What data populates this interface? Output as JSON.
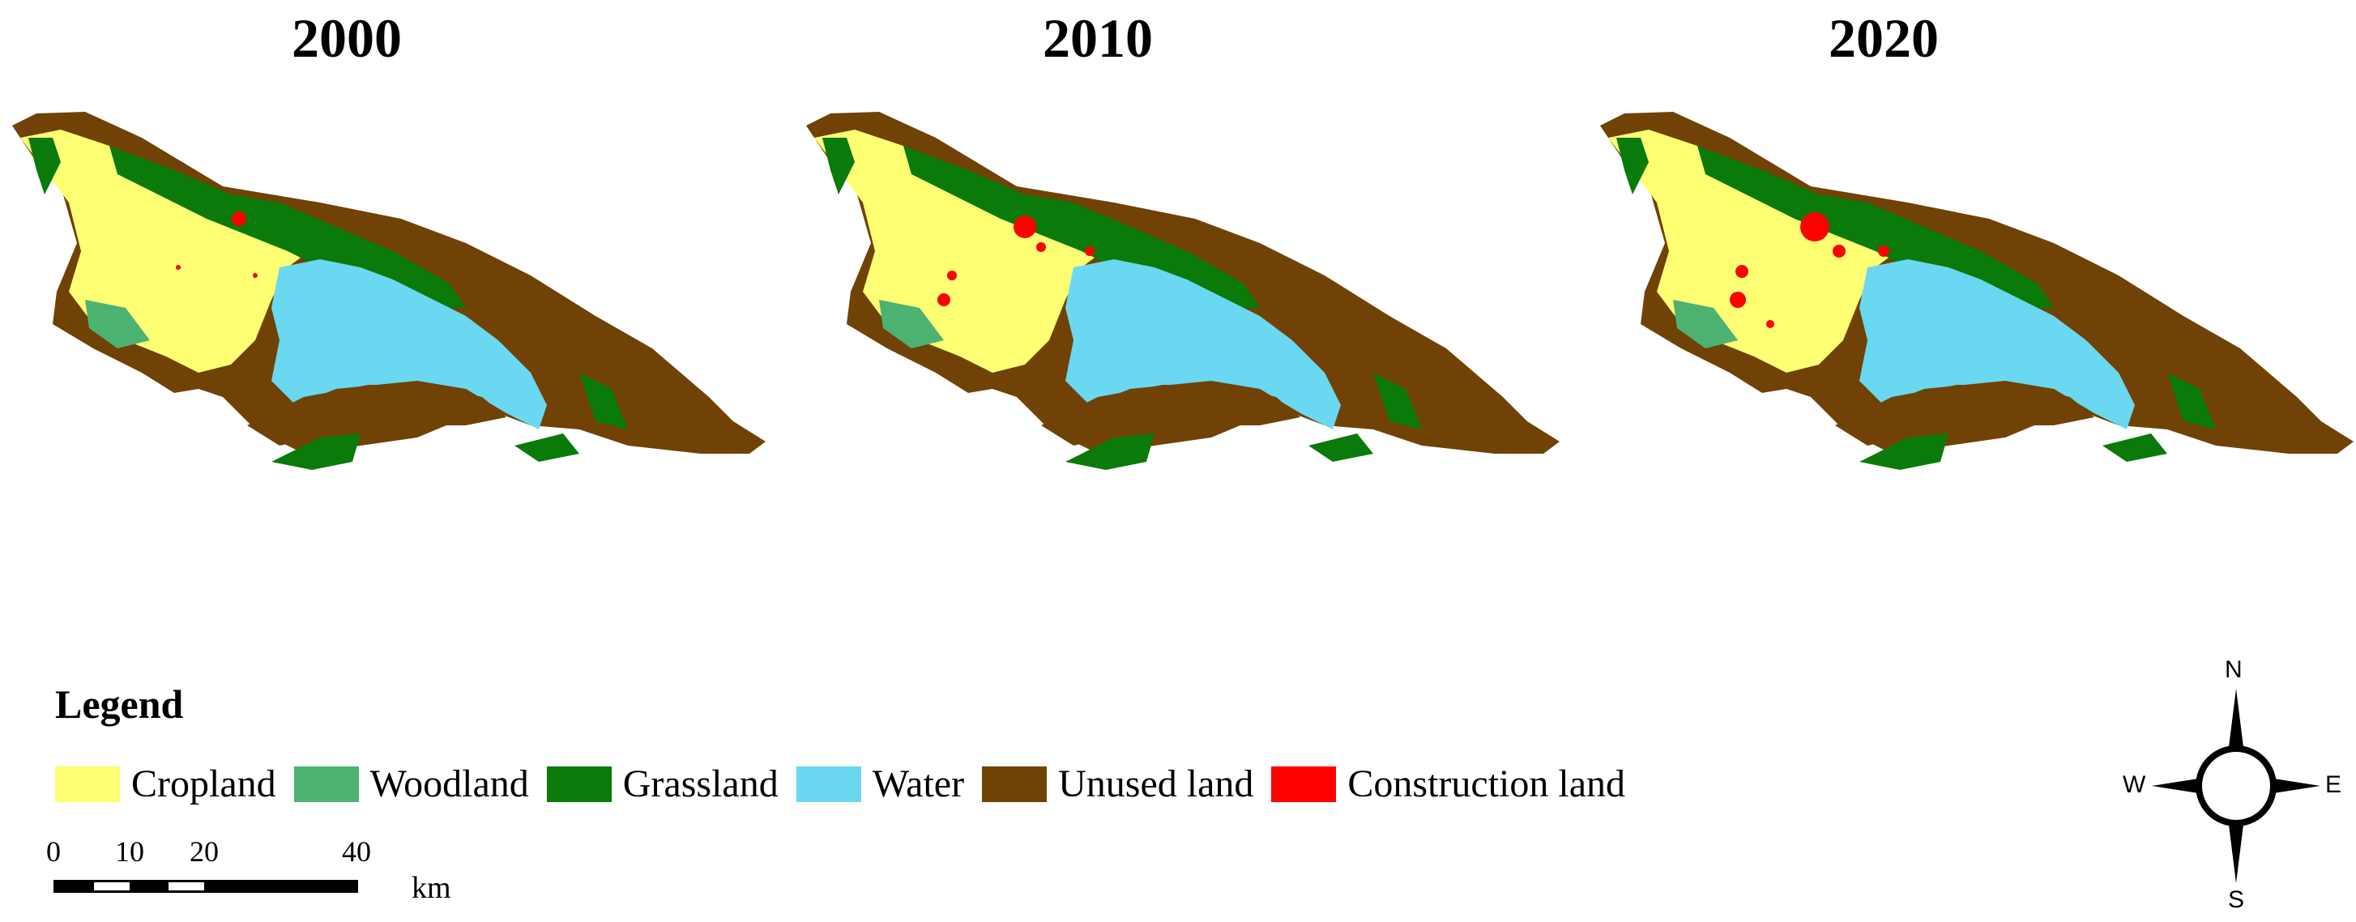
{
  "maps": [
    {
      "year": "2000"
    },
    {
      "year": "2010"
    },
    {
      "year": "2020"
    }
  ],
  "legend": {
    "title": "Legend",
    "items": [
      {
        "label": "Cropland",
        "color": "#ffff73"
      },
      {
        "label": "Woodland",
        "color": "#4cb272"
      },
      {
        "label": "Grassland",
        "color": "#0a7a0a"
      },
      {
        "label": "Water",
        "color": "#6ad8f0"
      },
      {
        "label": "Unused land",
        "color": "#704205"
      },
      {
        "label": "Construction land",
        "color": "#ff0000"
      }
    ]
  },
  "scale_bar": {
    "ticks": [
      "0",
      "10",
      "20",
      "40"
    ],
    "unit": "km"
  },
  "compass": {
    "north": "N",
    "south": "S",
    "east": "E",
    "west": "W"
  },
  "colors": {
    "cropland": "#ffff73",
    "woodland": "#4cb272",
    "grassland": "#0a7a0a",
    "water": "#6ad8f0",
    "unused": "#704205",
    "construction": "#ff0000"
  }
}
